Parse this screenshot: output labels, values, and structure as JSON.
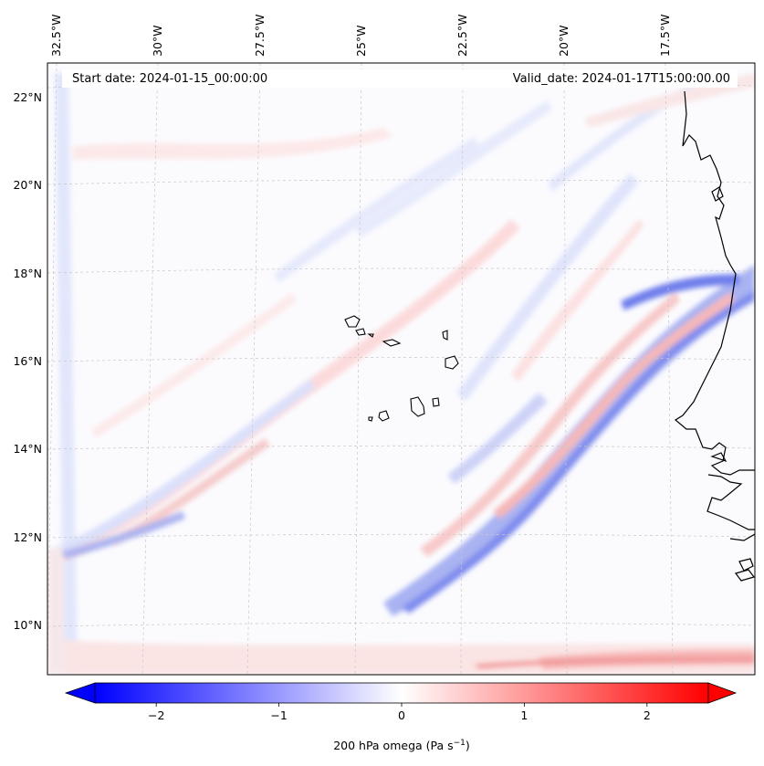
{
  "map": {
    "start_date": "Start date: 2024-01-15_00:00:00",
    "valid_date": "Valid_date: 2024-01-17T15:00:00.00",
    "lon_labels": [
      "32.5°W",
      "30°W",
      "27.5°W",
      "25°W",
      "22.5°W",
      "20°W",
      "17.5°W"
    ],
    "lat_labels": [
      "22°N",
      "20°N",
      "18°N",
      "16°N",
      "14°N",
      "12°N",
      "10°N"
    ],
    "field": "200 hPa omega",
    "units": "Pa s⁻¹"
  },
  "colorbar": {
    "tick_labels": [
      "−2",
      "−1",
      "0",
      "1",
      "2"
    ],
    "tick_values": [
      -2,
      -1,
      0,
      1,
      2
    ],
    "range": [
      -2.5,
      2.5
    ],
    "extend": "both",
    "colormap": "bwr",
    "label_main": "200 hPa omega (Pa s",
    "label_exp": "−1",
    "label_close": ")"
  },
  "colors": {
    "negative": "#0000ff",
    "zero": "#ffffff",
    "positive": "#ff0000",
    "coastline": "#000000",
    "gridline": "#c8c8c8"
  }
}
